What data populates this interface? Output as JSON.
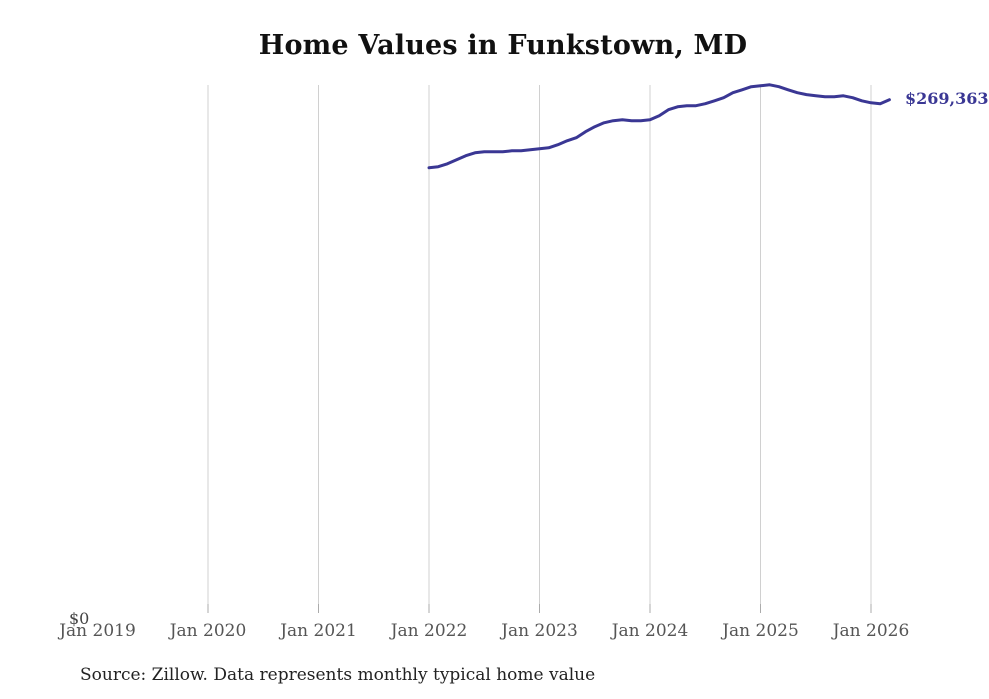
{
  "title": "Home Values in Funkstown, MD",
  "source_note": "Source: Zillow. Data represents monthly typical home value",
  "end_label": "$269,363",
  "y_zero_label": "$0",
  "colors": {
    "line": "#3a3794",
    "end_label_text": "#3a3794",
    "gridline": "#d0d0d0",
    "tick_mark": "#ababab",
    "tick_text": "#555555",
    "title_text": "#111111",
    "source_text": "#222222",
    "background": "#ffffff"
  },
  "chart_data": {
    "type": "line",
    "title": "Home Values in Funkstown, MD",
    "xlabel": "",
    "ylabel": "",
    "grid": "vertical-only",
    "legend": "none",
    "xlim": [
      2019,
      2027
    ],
    "ylim": [
      0,
      321000
    ],
    "x_ticks": [
      {
        "label": "Jan 2019",
        "year": 2019,
        "gridline": false
      },
      {
        "label": "Jan 2020",
        "year": 2020,
        "gridline": true
      },
      {
        "label": "Jan 2021",
        "year": 2021,
        "gridline": true
      },
      {
        "label": "Jan 2022",
        "year": 2022,
        "gridline": true
      },
      {
        "label": "Jan 2023",
        "year": 2023,
        "gridline": true
      },
      {
        "label": "Jan 2024",
        "year": 2024,
        "gridline": true
      },
      {
        "label": "Jan 2025",
        "year": 2025,
        "gridline": true
      },
      {
        "label": "Jan 2026",
        "year": 2026,
        "gridline": true
      }
    ],
    "end_label": "$269,363",
    "series": [
      {
        "name": "Monthly typical home value",
        "color": "#3a3794",
        "x": [
          "2022-01",
          "2022-02",
          "2022-03",
          "2022-04",
          "2022-05",
          "2022-06",
          "2022-07",
          "2022-08",
          "2022-09",
          "2022-10",
          "2022-11",
          "2022-12",
          "2023-01",
          "2023-02",
          "2023-03",
          "2023-04",
          "2023-05",
          "2023-06",
          "2023-07",
          "2023-08",
          "2023-09",
          "2023-10",
          "2023-11",
          "2023-12",
          "2024-01",
          "2024-02",
          "2024-03",
          "2024-04",
          "2024-05",
          "2024-06",
          "2024-07",
          "2024-08",
          "2024-09",
          "2024-10",
          "2024-11",
          "2024-12",
          "2025-01",
          "2025-02",
          "2025-03",
          "2025-04",
          "2025-05",
          "2025-06",
          "2025-07",
          "2025-08",
          "2025-09",
          "2025-10",
          "2025-11",
          "2025-12",
          "2026-01",
          "2026-02",
          "2026-03"
        ],
        "values": [
          234100,
          234700,
          236200,
          238300,
          240400,
          241900,
          242400,
          242400,
          242400,
          242900,
          242900,
          243500,
          244000,
          244500,
          246100,
          248100,
          249700,
          252800,
          255400,
          257400,
          258500,
          259000,
          258500,
          258500,
          259000,
          261100,
          264200,
          265700,
          266300,
          266300,
          267300,
          268800,
          270400,
          273000,
          274500,
          276100,
          276600,
          277100,
          276100,
          274500,
          273000,
          272000,
          271400,
          270900,
          270900,
          271400,
          270400,
          268800,
          267800,
          267300,
          269363
        ]
      }
    ]
  }
}
